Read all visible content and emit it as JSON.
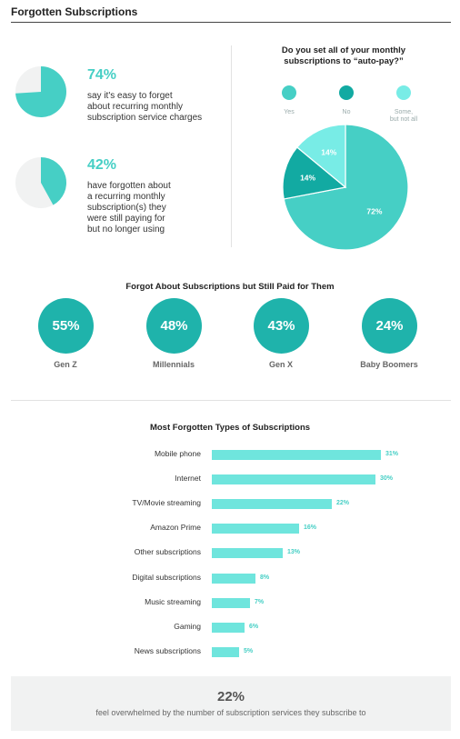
{
  "title": "Forgotten Subscriptions",
  "stats": [
    {
      "pct": "74%",
      "value": 74,
      "text": [
        "say it's easy to forget",
        "about recurring monthly",
        "subscription service charges"
      ]
    },
    {
      "pct": "42%",
      "value": 42,
      "text": [
        "have forgotten about",
        "a recurring monthly",
        "subscription(s) they",
        "were still paying for",
        "but no longer using"
      ]
    }
  ],
  "autopay": {
    "question": [
      "Do you set all of your monthly",
      "subscriptions to “auto-pay?”"
    ],
    "legend": [
      {
        "label": [
          "Yes"
        ],
        "color": "#46cfc5"
      },
      {
        "label": [
          "No"
        ],
        "color": "#12aaa2"
      },
      {
        "label": [
          "Some,",
          "but not all"
        ],
        "color": "#78ece6"
      }
    ]
  },
  "generations": {
    "title": "Forgot About Subscriptions but Still Paid for Them",
    "items": [
      {
        "pct": "55%",
        "label": "Gen Z"
      },
      {
        "pct": "48%",
        "label": "Millennials"
      },
      {
        "pct": "43%",
        "label": "Gen X"
      },
      {
        "pct": "24%",
        "label": "Baby Boomers"
      }
    ]
  },
  "bars_title": "Most Forgotten Types of Subscriptions",
  "footer": {
    "pct": "22%",
    "text": "feel overwhelmed by the number of subscription services they subscribe to"
  },
  "chart_data": [
    {
      "type": "pie",
      "title": "Do you set all of your monthly subscriptions to “auto-pay?”",
      "categories": [
        "Yes",
        "No",
        "Some, but not all"
      ],
      "values": [
        72,
        14,
        14
      ],
      "labels": [
        "72%",
        "14%",
        "14%"
      ],
      "colors": [
        "#46cfc5",
        "#12aaa2",
        "#78ece6"
      ]
    },
    {
      "type": "bar",
      "orientation": "horizontal",
      "title": "Most Forgotten Types of Subscriptions",
      "categories": [
        "Mobile phone",
        "Internet",
        "TV/Movie streaming",
        "Amazon Prime",
        "Other subscriptions",
        "Digital subscriptions",
        "Music streaming",
        "Gaming",
        "News subscriptions"
      ],
      "values": [
        31,
        30,
        22,
        16,
        13,
        8,
        7,
        6,
        5
      ],
      "labels": [
        "31%",
        "30%",
        "22%",
        "16%",
        "13%",
        "8%",
        "7%",
        "6%",
        "5%"
      ],
      "color": "#6fe5dd"
    }
  ]
}
